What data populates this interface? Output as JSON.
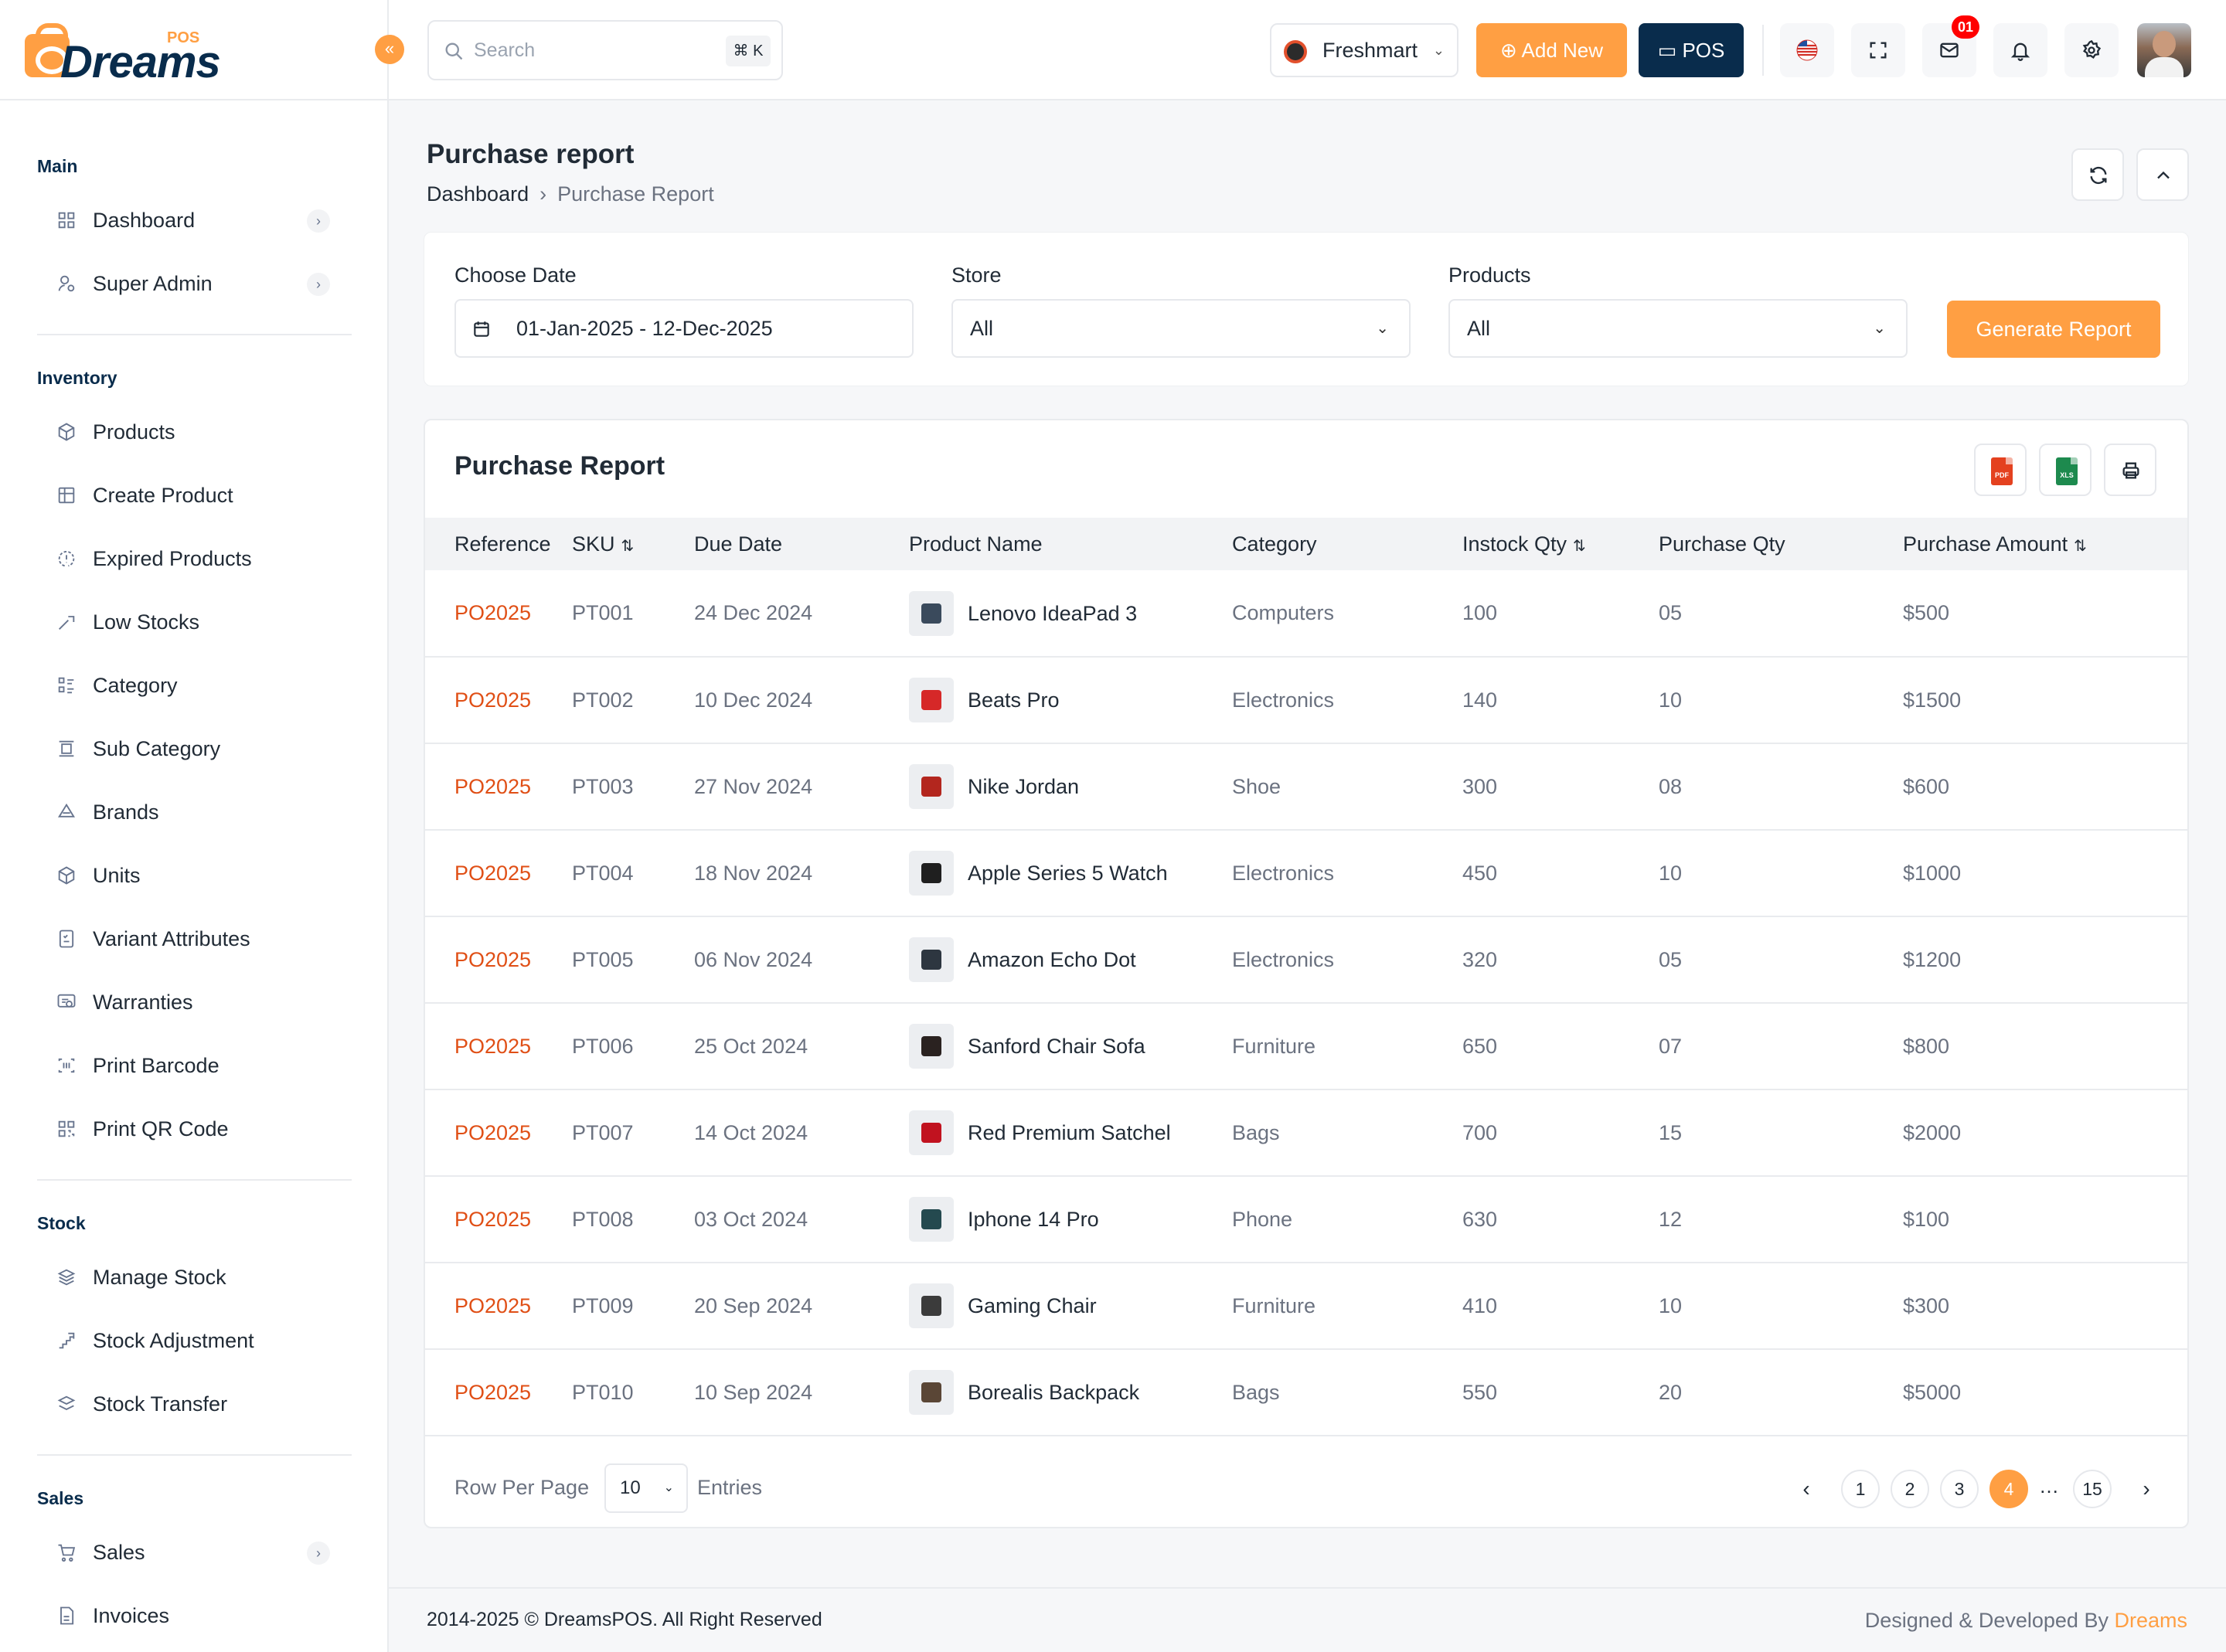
{
  "brand": {
    "name": "Dreams",
    "tag": "POS"
  },
  "header": {
    "search_placeholder": "Search",
    "shortcut": "⌘ K",
    "store": "Freshmart",
    "add_new": "Add New",
    "pos": "POS",
    "mail_badge": "01"
  },
  "sidebar": {
    "sections": [
      {
        "title": "Main",
        "items": [
          {
            "label": "Dashboard",
            "icon": "grid-icon",
            "has_sub": true
          },
          {
            "label": "Super Admin",
            "icon": "user-cog-icon",
            "has_sub": true
          }
        ]
      },
      {
        "title": "Inventory",
        "items": [
          {
            "label": "Products",
            "icon": "box-icon"
          },
          {
            "label": "Create Product",
            "icon": "table-plus-icon"
          },
          {
            "label": "Expired Products",
            "icon": "progress-alert-icon"
          },
          {
            "label": "Low Stocks",
            "icon": "trending-down-icon"
          },
          {
            "label": "Category",
            "icon": "list-details-icon"
          },
          {
            "label": "Sub Category",
            "icon": "carousel-icon"
          },
          {
            "label": "Brands",
            "icon": "triangles-icon"
          },
          {
            "label": "Units",
            "icon": "brand-unity-icon"
          },
          {
            "label": "Variant Attributes",
            "icon": "checklist-icon"
          },
          {
            "label": "Warranties",
            "icon": "certificate-icon"
          },
          {
            "label": "Print Barcode",
            "icon": "barcode-icon"
          },
          {
            "label": "Print QR Code",
            "icon": "qrcode-icon"
          }
        ]
      },
      {
        "title": "Stock",
        "items": [
          {
            "label": "Manage Stock",
            "icon": "stack-icon"
          },
          {
            "label": "Stock Adjustment",
            "icon": "stairs-up-icon"
          },
          {
            "label": "Stock Transfer",
            "icon": "stack-transfer-icon"
          }
        ]
      },
      {
        "title": "Sales",
        "items": [
          {
            "label": "Sales",
            "icon": "cart-icon",
            "has_sub": true
          },
          {
            "label": "Invoices",
            "icon": "file-invoice-icon"
          }
        ]
      }
    ]
  },
  "page": {
    "title": "Purchase report",
    "breadcrumb_home": "Dashboard",
    "breadcrumb_current": "Purchase Report"
  },
  "filters": {
    "date_label": "Choose Date",
    "date_value": "01-Jan-2025 - 12-Dec-2025",
    "store_label": "Store",
    "store_value": "All",
    "products_label": "Products",
    "products_value": "All",
    "generate": "Generate Report"
  },
  "table": {
    "title": "Purchase Report",
    "columns": [
      "Reference",
      "SKU",
      "Due Date",
      "Product Name",
      "Category",
      "Instock Qty",
      "Purchase Qty",
      "Purchase Amount"
    ],
    "rows": [
      {
        "ref": "PO2025",
        "sku": "PT001",
        "due": "24 Dec 2024",
        "product": "Lenovo IdeaPad 3",
        "category": "Computers",
        "instock": "100",
        "qty": "05",
        "amount": "$500",
        "thumb": "#3a4a5c"
      },
      {
        "ref": "PO2025",
        "sku": "PT002",
        "due": "10 Dec 2024",
        "product": "Beats Pro",
        "category": "Electronics",
        "instock": "140",
        "qty": "10",
        "amount": "$1500",
        "thumb": "#d62828"
      },
      {
        "ref": "PO2025",
        "sku": "PT003",
        "due": "27 Nov 2024",
        "product": "Nike Jordan",
        "category": "Shoe",
        "instock": "300",
        "qty": "08",
        "amount": "$600",
        "thumb": "#b3261e"
      },
      {
        "ref": "PO2025",
        "sku": "PT004",
        "due": "18 Nov 2024",
        "product": "Apple Series 5 Watch",
        "category": "Electronics",
        "instock": "450",
        "qty": "10",
        "amount": "$1000",
        "thumb": "#1f1f1f"
      },
      {
        "ref": "PO2025",
        "sku": "PT005",
        "due": "06 Nov 2024",
        "product": "Amazon Echo Dot",
        "category": "Electronics",
        "instock": "320",
        "qty": "05",
        "amount": "$1200",
        "thumb": "#2d3640"
      },
      {
        "ref": "PO2025",
        "sku": "PT006",
        "due": "25 Oct 2024",
        "product": "Sanford Chair Sofa",
        "category": "Furniture",
        "instock": "650",
        "qty": "07",
        "amount": "$800",
        "thumb": "#2a2220"
      },
      {
        "ref": "PO2025",
        "sku": "PT007",
        "due": "14 Oct 2024",
        "product": "Red Premium Satchel",
        "category": "Bags",
        "instock": "700",
        "qty": "15",
        "amount": "$2000",
        "thumb": "#c1121f"
      },
      {
        "ref": "PO2025",
        "sku": "PT008",
        "due": "03 Oct 2024",
        "product": "Iphone 14 Pro",
        "category": "Phone",
        "instock": "630",
        "qty": "12",
        "amount": "$100",
        "thumb": "#24494f"
      },
      {
        "ref": "PO2025",
        "sku": "PT009",
        "due": "20 Sep 2024",
        "product": "Gaming Chair",
        "category": "Furniture",
        "instock": "410",
        "qty": "10",
        "amount": "$300",
        "thumb": "#3b3b3b"
      },
      {
        "ref": "PO2025",
        "sku": "PT010",
        "due": "10 Sep 2024",
        "product": "Borealis Backpack",
        "category": "Bags",
        "instock": "550",
        "qty": "20",
        "amount": "$5000",
        "thumb": "#5a4636"
      }
    ]
  },
  "pagination": {
    "rows_label": "Row Per Page",
    "rows_value": "10",
    "entries_label": "Entries",
    "pages": [
      "1",
      "2",
      "3",
      "4",
      "15"
    ],
    "active": "4",
    "dots": "…"
  },
  "footer": {
    "copyright": "2014-2025 © DreamsPOS. All Right Reserved",
    "credit_prefix": "Designed & Developed By",
    "credit_brand": "Dreams"
  },
  "colors": {
    "accent": "#ff9f43",
    "navy": "#092c4c",
    "reference": "#e04f16"
  }
}
